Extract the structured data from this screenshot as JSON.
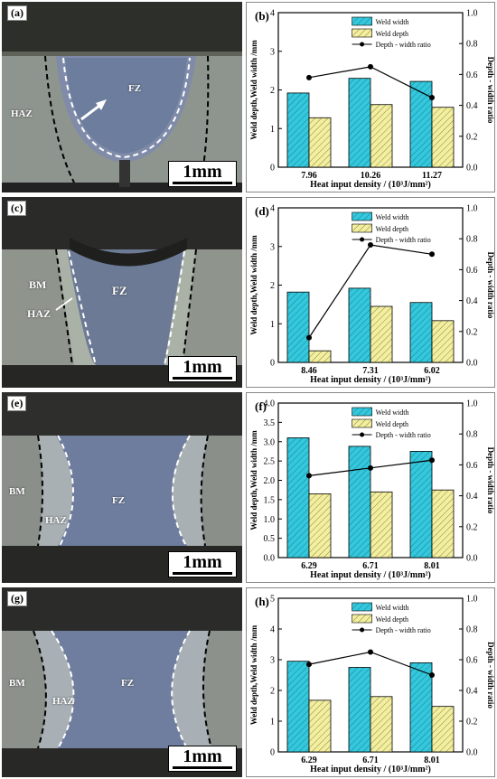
{
  "panels": [
    {
      "micro": {
        "label": "(a)",
        "scale": "1mm",
        "regions": [
          "HAZ",
          "FZ"
        ]
      },
      "chart": {
        "label": "(b)",
        "categories": [
          "7.96",
          "10.26",
          "11.27"
        ],
        "weld_width": [
          1.92,
          2.3,
          2.22
        ],
        "weld_depth": [
          1.28,
          1.62,
          1.55
        ],
        "ratio": [
          0.58,
          0.65,
          0.45
        ],
        "ylim_left": [
          0,
          4
        ],
        "ylim_right": [
          0,
          1.0
        ],
        "left_ticks": [
          "0",
          "1",
          "2",
          "3",
          "4"
        ],
        "right_ticks": [
          "0.0",
          "0.2",
          "0.4",
          "0.6",
          "0.8",
          "1.0"
        ]
      }
    },
    {
      "micro": {
        "label": "(c)",
        "scale": "1mm",
        "regions": [
          "BM",
          "HAZ",
          "FZ"
        ]
      },
      "chart": {
        "label": "(d)",
        "categories": [
          "8.46",
          "7.31",
          "6.02"
        ],
        "weld_width": [
          1.82,
          1.92,
          1.55
        ],
        "weld_depth": [
          0.3,
          1.45,
          1.08
        ],
        "ratio": [
          0.16,
          0.76,
          0.7
        ],
        "ylim_left": [
          0,
          4
        ],
        "ylim_right": [
          0,
          1.0
        ],
        "left_ticks": [
          "0",
          "1",
          "2",
          "3",
          "4"
        ],
        "right_ticks": [
          "0.0",
          "0.2",
          "0.4",
          "0.6",
          "0.8",
          "1.0"
        ]
      }
    },
    {
      "micro": {
        "label": "(e)",
        "scale": "1mm",
        "regions": [
          "BM",
          "HAZ",
          "FZ"
        ]
      },
      "chart": {
        "label": "(f)",
        "categories": [
          "6.29",
          "6.71",
          "8.01"
        ],
        "weld_width": [
          3.1,
          2.88,
          2.75
        ],
        "weld_depth": [
          1.65,
          1.7,
          1.75
        ],
        "ratio": [
          0.53,
          0.58,
          0.63
        ],
        "ylim_left": [
          0,
          4
        ],
        "ylim_right": [
          0,
          1.0
        ],
        "left_ticks": [
          "0.0",
          "0.5",
          "1.0",
          "1.5",
          "2.0",
          "2.5",
          "3.0",
          "3.5",
          "4.0"
        ],
        "right_ticks": [
          "0.0",
          "0.2",
          "0.4",
          "0.6",
          "0.8",
          "1.0"
        ]
      }
    },
    {
      "micro": {
        "label": "(g)",
        "scale": "1mm",
        "regions": [
          "BM",
          "HAZ",
          "FZ"
        ]
      },
      "chart": {
        "label": "(h)",
        "categories": [
          "6.29",
          "6.71",
          "8.01"
        ],
        "weld_width": [
          2.95,
          2.75,
          2.9
        ],
        "weld_depth": [
          1.68,
          1.8,
          1.48
        ],
        "ratio": [
          0.57,
          0.65,
          0.5
        ],
        "ylim_left": [
          0,
          5
        ],
        "ylim_right": [
          0,
          1.0
        ],
        "left_ticks": [
          "0",
          "1",
          "2",
          "3",
          "4",
          "5"
        ],
        "right_ticks": [
          "0.0",
          "0.2",
          "0.4",
          "0.6",
          "0.8",
          "1.0"
        ]
      }
    }
  ],
  "legend": {
    "weld_width": "Weld width",
    "weld_depth": "Weld depth",
    "ratio": "Depth - width ratio"
  },
  "axes": {
    "ylabel_left": "Weld depth,Weld width /mm",
    "ylabel_right": "Depth - width ratio",
    "xlabel": "Heat input density / (10³J/mm²)"
  },
  "colors": {
    "bar_width": "#33c8dd",
    "bar_depth": "#f3ef9e",
    "line": "#000000"
  },
  "chart_data": [
    {
      "type": "bar",
      "categories": [
        "7.96",
        "10.26",
        "11.27"
      ],
      "series": [
        {
          "name": "Weld width",
          "values": [
            1.92,
            2.3,
            2.22
          ]
        },
        {
          "name": "Weld depth",
          "values": [
            1.28,
            1.62,
            1.55
          ]
        },
        {
          "name": "Depth - width ratio",
          "values": [
            0.58,
            0.65,
            0.45
          ],
          "axis": "right",
          "type": "line"
        }
      ],
      "xlabel": "Heat input density / (10³J/mm²)",
      "ylabel": "Weld depth,Weld width /mm",
      "y2label": "Depth - width ratio",
      "ylim": [
        0,
        4
      ],
      "y2lim": [
        0,
        1.0
      ]
    },
    {
      "type": "bar",
      "categories": [
        "8.46",
        "7.31",
        "6.02"
      ],
      "series": [
        {
          "name": "Weld width",
          "values": [
            1.82,
            1.92,
            1.55
          ]
        },
        {
          "name": "Weld depth",
          "values": [
            0.3,
            1.45,
            1.08
          ]
        },
        {
          "name": "Depth - width ratio",
          "values": [
            0.16,
            0.76,
            0.7
          ],
          "axis": "right",
          "type": "line"
        }
      ],
      "xlabel": "Heat input density / (10³J/mm²)",
      "ylabel": "Weld depth,Weld width /mm",
      "y2label": "Depth - width ratio",
      "ylim": [
        0,
        4
      ],
      "y2lim": [
        0,
        1.0
      ]
    },
    {
      "type": "bar",
      "categories": [
        "6.29",
        "6.71",
        "8.01"
      ],
      "series": [
        {
          "name": "Weld width",
          "values": [
            3.1,
            2.88,
            2.75
          ]
        },
        {
          "name": "Weld depth",
          "values": [
            1.65,
            1.7,
            1.75
          ]
        },
        {
          "name": "Depth - width ratio",
          "values": [
            0.53,
            0.58,
            0.63
          ],
          "axis": "right",
          "type": "line"
        }
      ],
      "xlabel": "Heat input density / (10³J/mm²)",
      "ylabel": "Weld depth,Weld width /mm",
      "y2label": "Depth - width ratio",
      "ylim": [
        0,
        4
      ],
      "y2lim": [
        0,
        1.0
      ]
    },
    {
      "type": "bar",
      "categories": [
        "6.29",
        "6.71",
        "8.01"
      ],
      "series": [
        {
          "name": "Weld width",
          "values": [
            2.95,
            2.75,
            2.9
          ]
        },
        {
          "name": "Weld depth",
          "values": [
            1.68,
            1.8,
            1.48
          ]
        },
        {
          "name": "Depth - width ratio",
          "values": [
            0.57,
            0.65,
            0.5
          ],
          "axis": "right",
          "type": "line"
        }
      ],
      "xlabel": "Heat input density / (10³J/mm²)",
      "ylabel": "Weld depth,Weld width /mm",
      "y2label": "Depth - width ratio",
      "ylim": [
        0,
        5
      ],
      "y2lim": [
        0,
        1.0
      ]
    }
  ]
}
